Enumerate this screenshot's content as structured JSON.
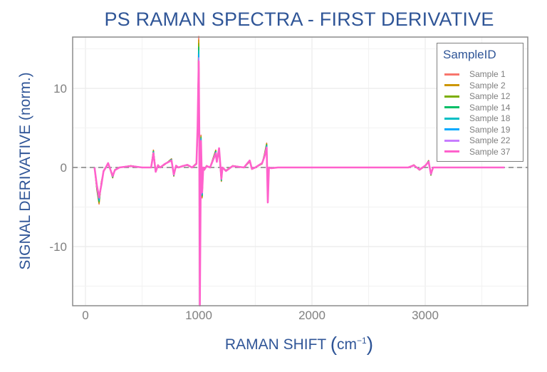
{
  "chart_data": {
    "type": "line",
    "title": "PS RAMAN SPECTRA - FIRST DERIVATIVE",
    "xlabel": "RAMAN SHIFT (cm^-1)",
    "ylabel": "SIGNAL DERIVATIVE (norm.)",
    "xlim": [
      -100,
      3900
    ],
    "ylim": [
      -16.5,
      17
    ],
    "x_ticks": [
      0,
      1000,
      2000,
      3000
    ],
    "y_ticks": [
      -10,
      0,
      10
    ],
    "grid": true,
    "reference_line": {
      "y": 0,
      "style": "dashed",
      "color": "#7f7f7f"
    },
    "legend": {
      "title": "SampleID",
      "position": "top-right inside"
    },
    "series": [
      {
        "name": "Sample 1",
        "color": "#f8766d"
      },
      {
        "name": "Sample 2",
        "color": "#cd9600"
      },
      {
        "name": "Sample 12",
        "color": "#7cae00"
      },
      {
        "name": "Sample 14",
        "color": "#00be67"
      },
      {
        "name": "Sample 18",
        "color": "#00bfc4"
      },
      {
        "name": "Sample 19",
        "color": "#00a9ff"
      },
      {
        "name": "Sample 22",
        "color": "#c77cff"
      },
      {
        "name": "Sample 37",
        "color": "#ff61cc"
      }
    ],
    "x": [
      80,
      100,
      120,
      140,
      160,
      180,
      200,
      220,
      240,
      260,
      300,
      400,
      500,
      580,
      600,
      620,
      640,
      660,
      700,
      760,
      780,
      800,
      820,
      860,
      900,
      940,
      980,
      990,
      1000,
      1005,
      1010,
      1020,
      1030,
      1040,
      1050,
      1070,
      1100,
      1150,
      1160,
      1180,
      1200,
      1210,
      1240,
      1300,
      1400,
      1450,
      1470,
      1500,
      1560,
      1580,
      1600,
      1610,
      1620,
      1640,
      1700,
      2000,
      2500,
      2850,
      2900,
      2950,
      3000,
      3030,
      3050,
      3070,
      3100,
      3200,
      3700
    ],
    "y_representative": [
      0,
      -2.5,
      -4.2,
      -2.0,
      -0.5,
      0.0,
      0.5,
      -0.3,
      -1.2,
      -0.3,
      0.0,
      0.2,
      0.0,
      0.0,
      2.0,
      -0.5,
      0.3,
      0.0,
      0.4,
      1.0,
      -1.0,
      0.2,
      0.0,
      0.2,
      0.3,
      0.0,
      0.5,
      4.5,
      15.0,
      5.0,
      -15.8,
      3.7,
      -3.5,
      0.0,
      -0.3,
      0.2,
      0.0,
      2.0,
      0.8,
      2.2,
      -1.6,
      0.0,
      -0.4,
      0.2,
      0.0,
      0.8,
      -0.2,
      0.0,
      0.5,
      1.5,
      2.8,
      -4.0,
      0.0,
      -0.1,
      0.0,
      0.0,
      0.0,
      0.0,
      0.3,
      -0.3,
      0.2,
      0.8,
      -0.9,
      0.0,
      0.0,
      0.0,
      0.0
    ]
  },
  "legend": {
    "title": "SampleID",
    "items": [
      {
        "label": "Sample 1",
        "color": "#f8766d"
      },
      {
        "label": "Sample 2",
        "color": "#cd9600"
      },
      {
        "label": "Sample 12",
        "color": "#7cae00"
      },
      {
        "label": "Sample 14",
        "color": "#00be67"
      },
      {
        "label": "Sample 18",
        "color": "#00bfc4"
      },
      {
        "label": "Sample 19",
        "color": "#00a9ff"
      },
      {
        "label": "Sample 22",
        "color": "#c77cff"
      },
      {
        "label": "Sample 37",
        "color": "#ff61cc"
      }
    ]
  },
  "axes": {
    "x_tick_labels": [
      "0",
      "1000",
      "2000",
      "3000"
    ],
    "y_tick_labels": [
      "10",
      "0",
      "-10"
    ],
    "xlabel_main": "RAMAN SHIFT ",
    "xlabel_unit": "cm",
    "xlabel_exp": "−1",
    "ylabel": "SIGNAL DERIVATIVE (norm.)"
  },
  "title": "PS RAMAN SPECTRA - FIRST DERIVATIVE"
}
